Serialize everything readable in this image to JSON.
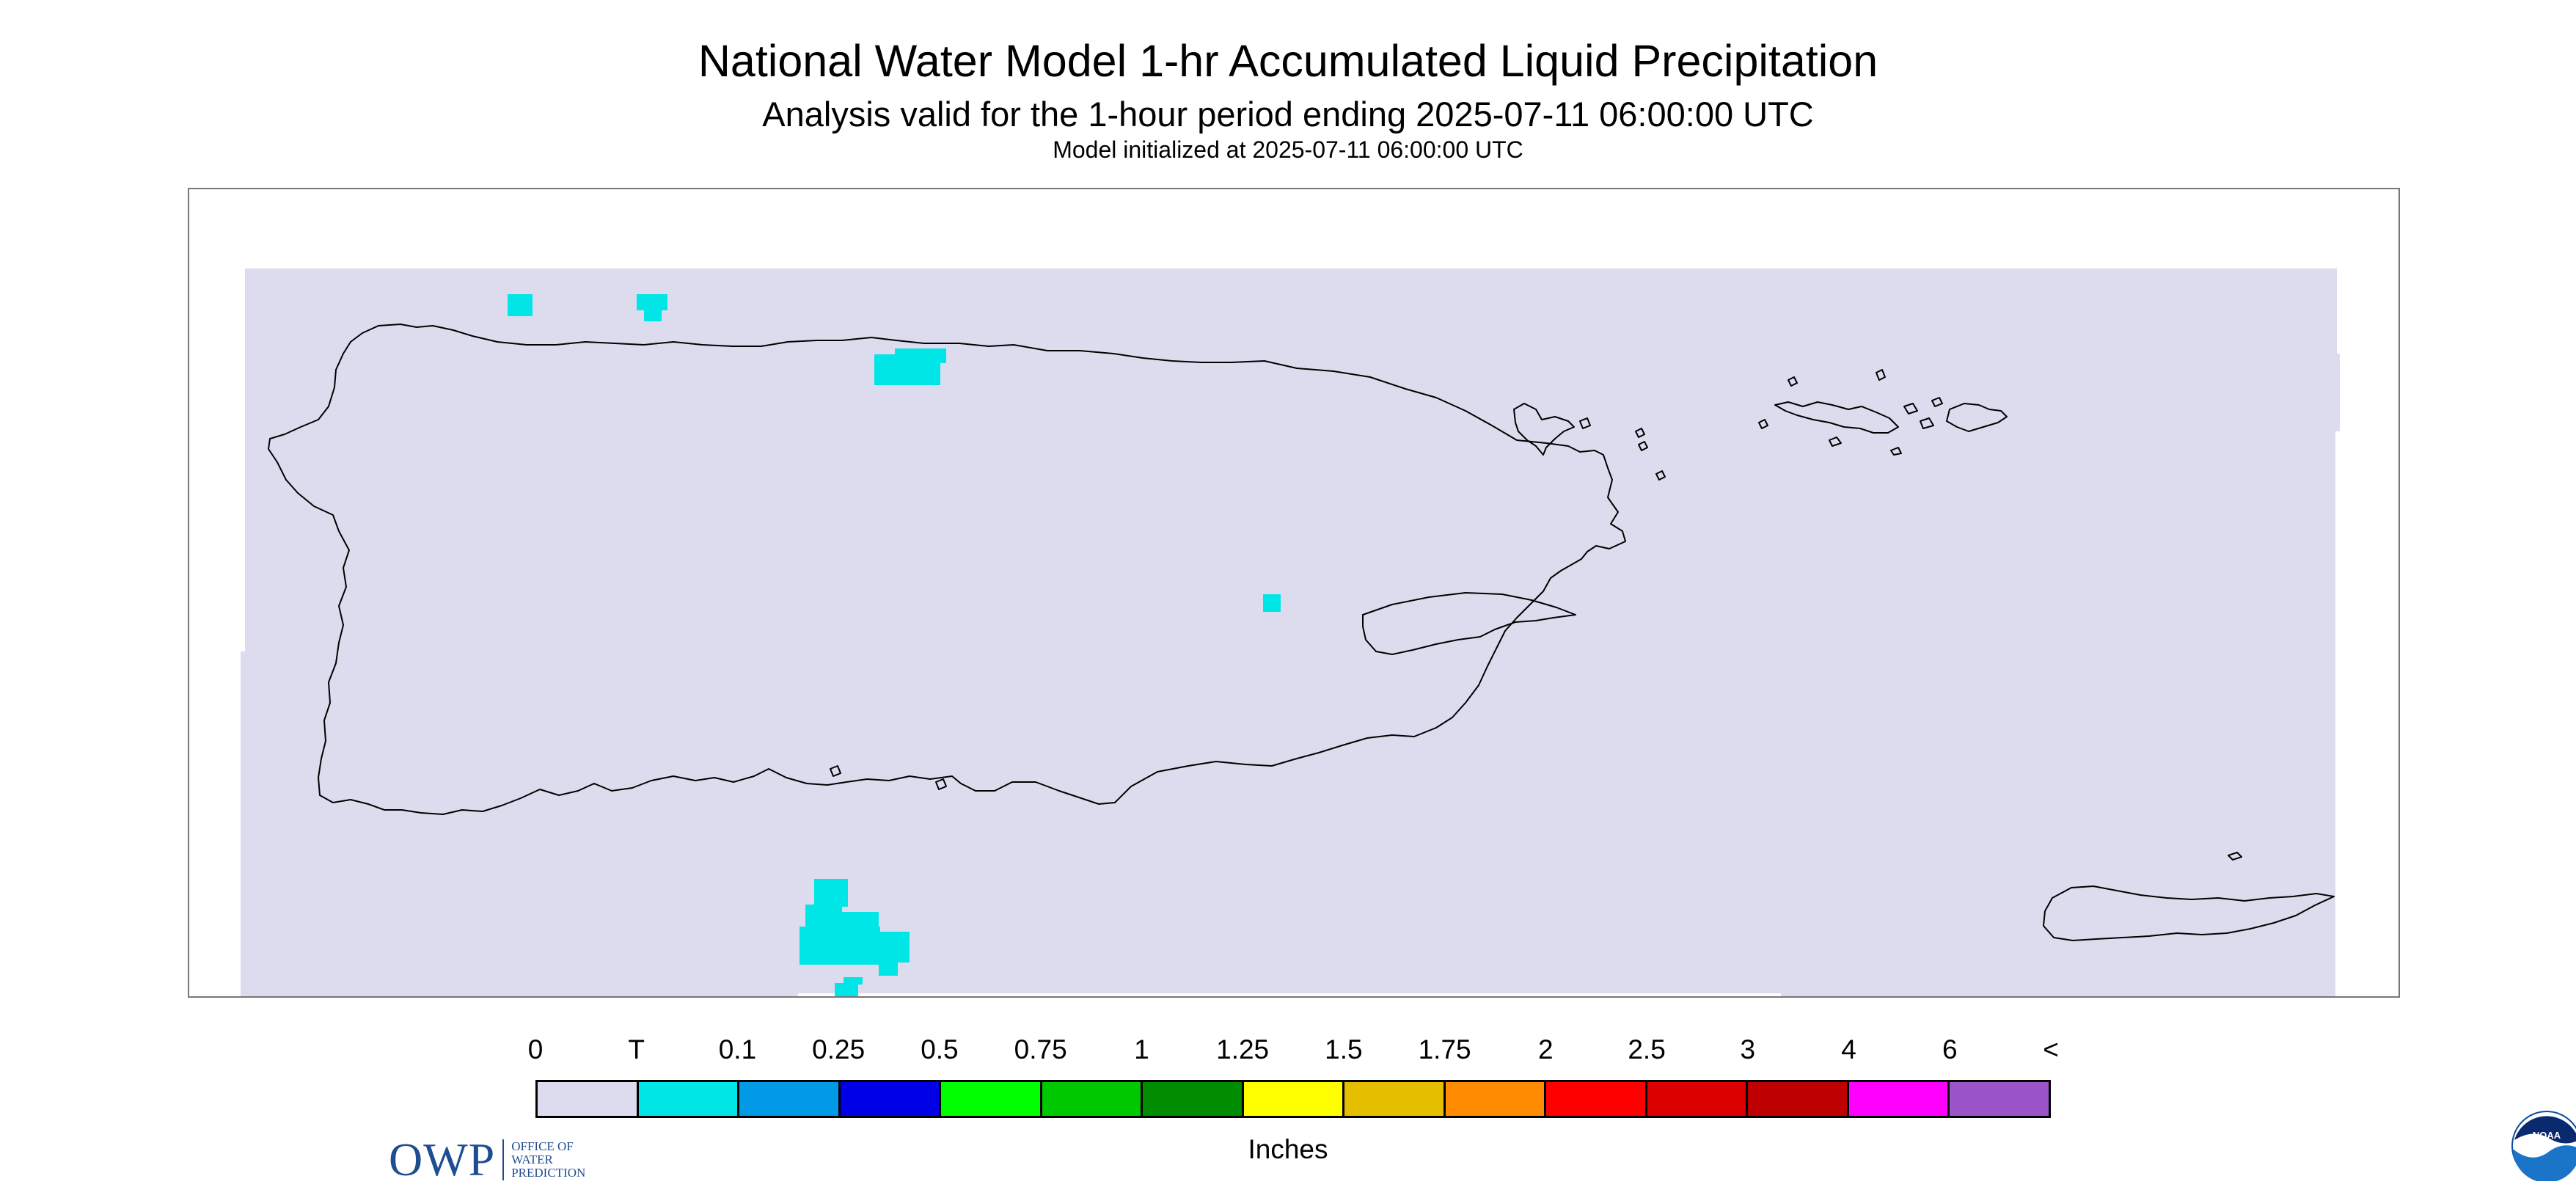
{
  "header": {
    "title": "National Water Model 1-hr Accumulated Liquid Precipitation",
    "subtitle": "Analysis valid for the 1-hour period ending 2025-07-11 06:00:00 UTC",
    "init_line": "Model initialized at 2025-07-11 06:00:00 UTC"
  },
  "map": {
    "background_color": "#dcdcee",
    "coastline_color": "#000000",
    "trace_color": "#00e6e6"
  },
  "logos": {
    "owp_mark": "OWP",
    "owp_line1": "OFFICE OF",
    "owp_line2": "WATER",
    "owp_line3": "PREDICTION",
    "noaa_text": "NOAA"
  },
  "legend": {
    "labels": [
      "0",
      "T",
      "0.1",
      "0.25",
      "0.5",
      "0.75",
      "1",
      "1.25",
      "1.5",
      "1.75",
      "2",
      "2.5",
      "3",
      "4",
      "6",
      "<"
    ],
    "colors": [
      "#dcdcee",
      "#00e6e6",
      "#009ae6",
      "#0000e6",
      "#00ff00",
      "#00c800",
      "#008c00",
      "#ffff00",
      "#e6be00",
      "#ff8c00",
      "#ff0000",
      "#dc0000",
      "#be0000",
      "#ff00ff",
      "#9b55c8"
    ],
    "units": "Inches"
  }
}
